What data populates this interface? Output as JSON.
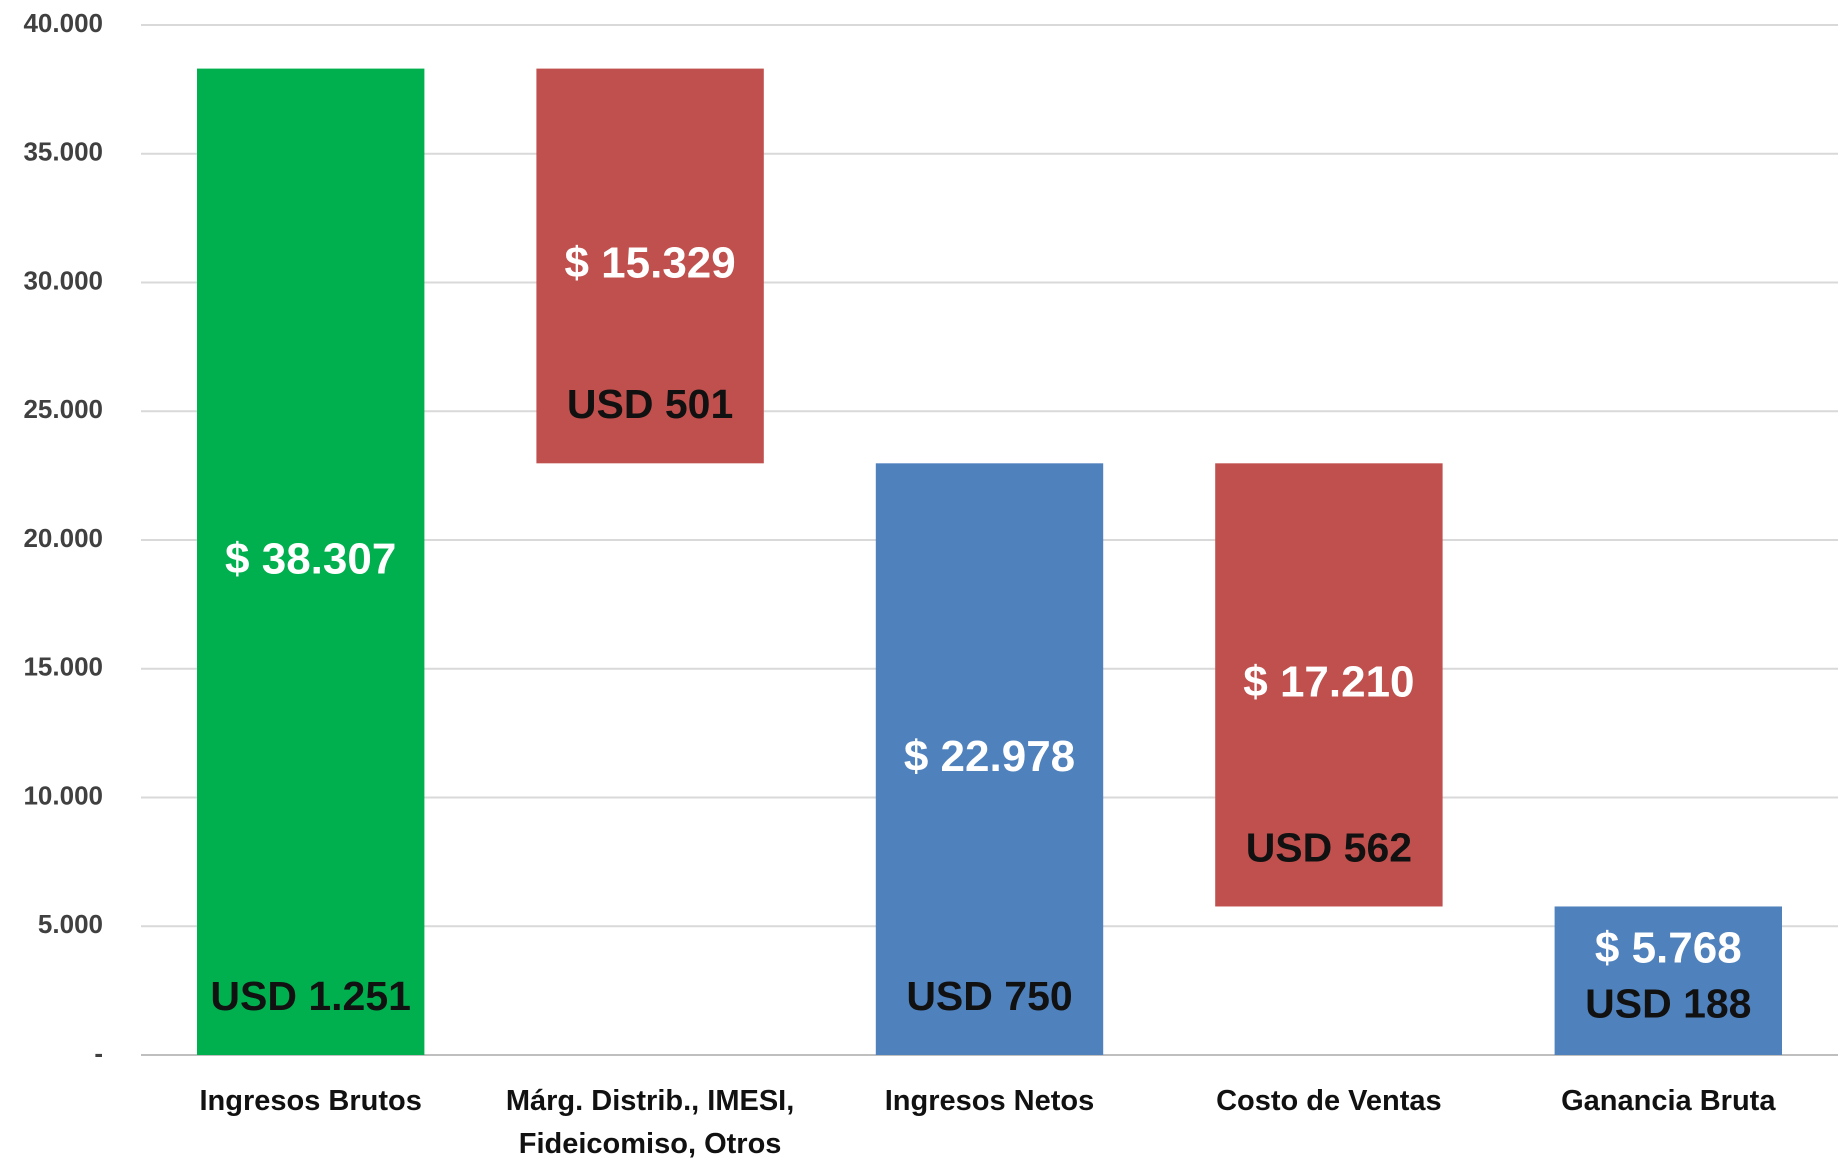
{
  "chart_data": {
    "type": "waterfall",
    "categories": [
      "Ingresos Brutos",
      "Márg. Distrib., IMESI, Fideicomiso, Otros",
      "Ingresos Netos",
      "Costo de Ventas",
      "Ganancia Bruta"
    ],
    "measure": [
      "total",
      "decrease",
      "total",
      "decrease",
      "total"
    ],
    "values": [
      38307,
      15329,
      22978,
      17210,
      5768
    ],
    "value_labels": [
      "$ 38.307",
      "$ 15.329",
      "$ 22.978",
      "$ 17.210",
      "$ 5.768"
    ],
    "annotations": [
      "USD 1.251",
      "USD 501",
      "USD 750",
      "USD 562",
      "USD 188"
    ],
    "colors": [
      "#00b04f",
      "#c0504d",
      "#4f81bd",
      "#c0504d",
      "#4f81bd"
    ],
    "ylim": [
      0,
      40000
    ],
    "yticks": [
      {
        "value": 0,
        "label": "-"
      },
      {
        "value": 5000,
        "label": "5.000"
      },
      {
        "value": 10000,
        "label": "10.000"
      },
      {
        "value": 15000,
        "label": "15.000"
      },
      {
        "value": 20000,
        "label": "20.000"
      },
      {
        "value": 25000,
        "label": "25.000"
      },
      {
        "value": 30000,
        "label": "30.000"
      },
      {
        "value": 35000,
        "label": "35.000"
      },
      {
        "value": 40000,
        "label": "40.000"
      }
    ],
    "grid": true
  }
}
